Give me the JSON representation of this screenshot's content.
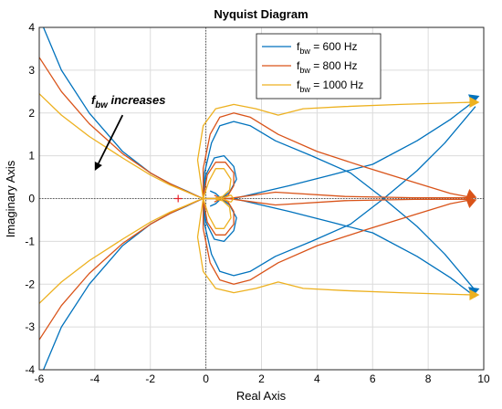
{
  "chart_data": {
    "type": "line",
    "title": "Nyquist Diagram",
    "xlabel": "Real Axis",
    "ylabel": "Imaginary Axis",
    "xlim": [
      -6,
      10
    ],
    "ylim": [
      -4,
      4
    ],
    "xticks": [
      "-6",
      "-4",
      "-2",
      "0",
      "2",
      "4",
      "6",
      "8",
      "10"
    ],
    "yticks": [
      "-4",
      "-3",
      "-2",
      "-1",
      "0",
      "1",
      "2",
      "3",
      "4"
    ],
    "grid": true,
    "legend_position": "top-right",
    "legend": [
      {
        "base": "f",
        "sub": "bw",
        "rest": " = 600 Hz",
        "color": "#0072BD"
      },
      {
        "base": "f",
        "sub": "bw",
        "rest": " = 800 Hz",
        "color": "#D95319"
      },
      {
        "base": "f",
        "sub": "bw",
        "rest": " = 1000 Hz",
        "color": "#EDB120"
      }
    ],
    "annotation": {
      "base": "f",
      "sub": "bw",
      "rest": " increases",
      "arrow_from": [
        -3.0,
        1.95
      ],
      "arrow_to": [
        -4.0,
        0.65
      ]
    },
    "critical_point": {
      "x": -1,
      "y": 0,
      "marker": "+",
      "color": "#E8212A"
    },
    "series": [
      {
        "name": "fbw = 600 Hz",
        "color": "#0072BD",
        "tail": [
          [
            -5.85,
            4.0
          ],
          [
            -5.2,
            3.0
          ],
          [
            -4.2,
            2.0
          ],
          [
            -3.0,
            1.1
          ],
          [
            -2.0,
            0.6
          ],
          [
            -1.3,
            0.35
          ],
          [
            -0.7,
            0.18
          ],
          [
            -0.35,
            0.07
          ],
          [
            -0.1,
            0.0
          ]
        ],
        "big": [
          [
            -0.1,
            0
          ],
          [
            -0.05,
            0.6
          ],
          [
            0.2,
            1.3
          ],
          [
            0.5,
            1.7
          ],
          [
            1.0,
            1.8
          ],
          [
            1.6,
            1.7
          ],
          [
            2.5,
            1.35
          ],
          [
            3.8,
            1.0
          ],
          [
            5.2,
            0.6
          ],
          [
            6.4,
            0.0
          ],
          [
            7.6,
            -0.65
          ],
          [
            8.6,
            -1.3
          ],
          [
            9.7,
            -2.15
          ]
        ],
        "small": [
          [
            -0.1,
            0
          ],
          [
            0.0,
            0.55
          ],
          [
            0.3,
            0.95
          ],
          [
            0.65,
            1.0
          ],
          [
            1.0,
            0.75
          ],
          [
            1.1,
            0.45
          ],
          [
            0.85,
            0.15
          ],
          [
            0.55,
            0.0
          ],
          [
            0.35,
            0.12
          ],
          [
            0.15,
            0.18
          ]
        ],
        "branch": [
          [
            -0.1,
            0.0
          ],
          [
            1.0,
            0.0
          ],
          [
            3.0,
            0.3
          ],
          [
            4.5,
            0.55
          ],
          [
            6.0,
            0.8
          ],
          [
            7.6,
            1.35
          ],
          [
            8.8,
            1.85
          ],
          [
            9.7,
            2.3
          ]
        ],
        "arrows": [
          [
            9.45,
            2.3,
            9.85,
            2.4
          ],
          [
            9.45,
            -2.2,
            9.85,
            -2.1
          ]
        ]
      },
      {
        "name": "fbw = 800 Hz",
        "color": "#D95319",
        "tail": [
          [
            -6.0,
            3.3
          ],
          [
            -5.2,
            2.5
          ],
          [
            -4.2,
            1.75
          ],
          [
            -3.0,
            1.05
          ],
          [
            -2.0,
            0.6
          ],
          [
            -1.3,
            0.35
          ],
          [
            -0.7,
            0.17
          ],
          [
            -0.35,
            0.07
          ],
          [
            -0.1,
            0.0
          ]
        ],
        "big": [
          [
            -0.1,
            0
          ],
          [
            -0.1,
            0.7
          ],
          [
            0.15,
            1.5
          ],
          [
            0.5,
            1.9
          ],
          [
            1.0,
            2.0
          ],
          [
            1.6,
            1.9
          ],
          [
            2.6,
            1.5
          ],
          [
            4.0,
            1.1
          ],
          [
            5.8,
            0.72
          ],
          [
            7.5,
            0.38
          ],
          [
            8.8,
            0.12
          ],
          [
            9.6,
            0.02
          ]
        ],
        "small": [
          [
            -0.1,
            0
          ],
          [
            0.05,
            0.55
          ],
          [
            0.35,
            0.85
          ],
          [
            0.7,
            0.85
          ],
          [
            1.0,
            0.6
          ],
          [
            1.0,
            0.3
          ],
          [
            0.8,
            0.08
          ],
          [
            0.55,
            0.0
          ],
          [
            0.3,
            0.08
          ]
        ],
        "branch": [
          [
            -0.1,
            0.0
          ],
          [
            0.8,
            0.0
          ],
          [
            2.5,
            0.15
          ],
          [
            5.0,
            0.05
          ],
          [
            7.5,
            0.02
          ],
          [
            9.6,
            0.02
          ]
        ],
        "arrows": [
          [
            9.35,
            0.12,
            9.75,
            0.02
          ],
          [
            9.35,
            -0.12,
            9.75,
            -0.02
          ]
        ]
      },
      {
        "name": "fbw = 1000 Hz",
        "color": "#EDB120",
        "tail": [
          [
            -6.0,
            2.45
          ],
          [
            -5.2,
            1.95
          ],
          [
            -4.2,
            1.45
          ],
          [
            -3.0,
            0.95
          ],
          [
            -2.0,
            0.55
          ],
          [
            -1.3,
            0.32
          ],
          [
            -0.7,
            0.16
          ],
          [
            -0.35,
            0.06
          ],
          [
            -0.1,
            0.0
          ]
        ],
        "big": [
          [
            -0.1,
            0
          ],
          [
            -0.3,
            0.9
          ],
          [
            -0.1,
            1.7
          ],
          [
            0.35,
            2.1
          ],
          [
            1.0,
            2.2
          ],
          [
            1.8,
            2.1
          ],
          [
            2.6,
            1.95
          ],
          [
            3.5,
            2.1
          ],
          [
            5.0,
            2.15
          ],
          [
            7.0,
            2.2
          ],
          [
            9.6,
            2.25
          ]
        ],
        "small": [
          [
            -0.1,
            0
          ],
          [
            0.1,
            0.4
          ],
          [
            0.35,
            0.7
          ],
          [
            0.65,
            0.7
          ],
          [
            0.9,
            0.45
          ],
          [
            0.85,
            0.2
          ],
          [
            0.6,
            0.05
          ],
          [
            0.35,
            0.02
          ]
        ],
        "branch": [
          [
            -0.1,
            0.0
          ],
          [
            0.55,
            0.0
          ],
          [
            0.9,
            0.08
          ],
          [
            1.0,
            0.0
          ]
        ],
        "arrows": [
          [
            9.45,
            2.25,
            9.85,
            2.25
          ],
          [
            9.45,
            -2.25,
            9.85,
            -2.25
          ]
        ]
      }
    ]
  }
}
